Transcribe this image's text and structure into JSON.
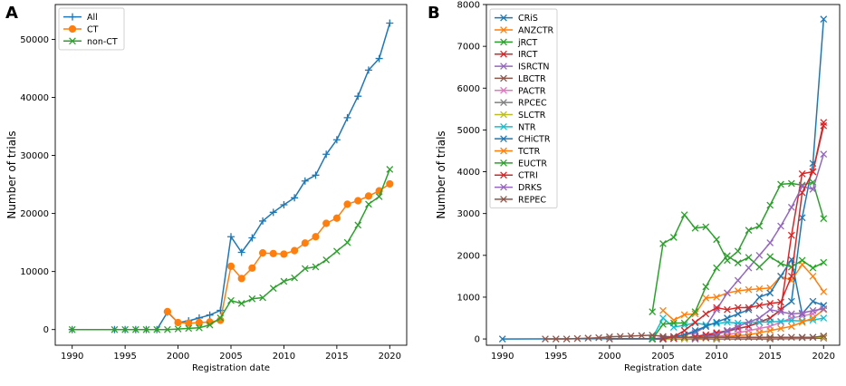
{
  "chart_data": [
    {
      "panel": "A",
      "type": "line",
      "xlabel": "Registration date",
      "ylabel": "Number of trials",
      "xlim": [
        1988.4,
        2021.6
      ],
      "ylim": [
        -2700,
        56000
      ],
      "xticks": [
        1990,
        1995,
        2000,
        2005,
        2010,
        2015,
        2020
      ],
      "yticks": [
        0,
        10000,
        20000,
        30000,
        40000,
        50000
      ],
      "legend_position": "top-left",
      "series": [
        {
          "name": "All",
          "color": "#1f77b4",
          "marker": "+",
          "x": [
            1990,
            1994,
            1995,
            1996,
            1997,
            1998,
            1999,
            2000,
            2001,
            2002,
            2003,
            2004,
            2005,
            2006,
            2007,
            2008,
            2009,
            2010,
            2011,
            2012,
            2013,
            2014,
            2015,
            2016,
            2017,
            2018,
            2019,
            2020
          ],
          "values": [
            0,
            0,
            0,
            0,
            0,
            0,
            3000,
            1200,
            1500,
            2000,
            2500,
            3300,
            16000,
            13300,
            15800,
            18700,
            20200,
            21500,
            22700,
            25600,
            26600,
            30200,
            32700,
            36500,
            40200,
            44700,
            46700,
            52800
          ]
        },
        {
          "name": "CT",
          "color": "#ff7f0e",
          "marker": "o",
          "x": [
            1999,
            2000,
            2001,
            2002,
            2003,
            2004,
            2005,
            2006,
            2007,
            2008,
            2009,
            2010,
            2011,
            2012,
            2013,
            2014,
            2015,
            2016,
            2017,
            2018,
            2019,
            2020
          ],
          "values": [
            3100,
            1200,
            1100,
            1200,
            1300,
            1600,
            10900,
            8800,
            10600,
            13200,
            13100,
            13000,
            13600,
            14900,
            16000,
            18300,
            19200,
            21600,
            22200,
            23000,
            23900,
            25100
          ]
        },
        {
          "name": "non-CT",
          "color": "#2ca02c",
          "marker": "x",
          "x": [
            1990,
            1994,
            1995,
            1996,
            1997,
            1998,
            1999,
            2000,
            2001,
            2002,
            2003,
            2004,
            2005,
            2006,
            2007,
            2008,
            2009,
            2010,
            2011,
            2012,
            2013,
            2014,
            2015,
            2016,
            2017,
            2018,
            2019,
            2020
          ],
          "values": [
            0,
            0,
            0,
            0,
            0,
            0,
            0,
            100,
            200,
            300,
            800,
            2000,
            5000,
            4500,
            5300,
            5500,
            7100,
            8300,
            8900,
            10500,
            10800,
            12000,
            13500,
            15000,
            18000,
            21600,
            22900,
            27600
          ]
        }
      ]
    },
    {
      "panel": "B",
      "type": "line",
      "xlabel": "Registration date",
      "ylabel": "Number of trials",
      "xlim": [
        1988.5,
        2021.5
      ],
      "ylim": [
        -150,
        8000
      ],
      "xticks": [
        1990,
        1995,
        2000,
        2005,
        2010,
        2015,
        2020
      ],
      "yticks": [
        0,
        1000,
        2000,
        3000,
        4000,
        5000,
        6000,
        7000,
        8000
      ],
      "legend_position": "top-left",
      "series": [
        {
          "name": "CRiS",
          "color": "#1f77b4",
          "marker": "x",
          "x": [
            2004,
            2005,
            2006,
            2007,
            2008,
            2009,
            2010,
            2011,
            2012,
            2013,
            2014,
            2015,
            2016,
            2017,
            2018,
            2019,
            2020
          ],
          "values": [
            0,
            0,
            10,
            20,
            40,
            70,
            120,
            180,
            250,
            300,
            400,
            500,
            700,
            900,
            2900,
            4200,
            7650
          ]
        },
        {
          "name": "ANZCTR",
          "color": "#ff7f0e",
          "marker": "x",
          "x": [
            2005,
            2006,
            2007,
            2008,
            2009,
            2010,
            2011,
            2012,
            2013,
            2014,
            2015,
            2016,
            2017,
            2018,
            2019,
            2020
          ],
          "values": [
            680,
            450,
            580,
            600,
            980,
            1000,
            1100,
            1150,
            1180,
            1200,
            1220,
            1500,
            1400,
            1780,
            1500,
            1130
          ]
        },
        {
          "name": "jRCT",
          "color": "#2ca02c",
          "marker": "x",
          "x": [
            2004,
            2005,
            2006,
            2007,
            2008,
            2009,
            2010,
            2011,
            2012,
            2013,
            2014,
            2015,
            2016,
            2017,
            2018,
            2019,
            2020
          ],
          "values": [
            650,
            2280,
            2430,
            2970,
            2650,
            2680,
            2380,
            1880,
            2100,
            2600,
            2700,
            3200,
            3700,
            3720,
            3680,
            3750,
            2880
          ]
        },
        {
          "name": "IRCT",
          "color": "#d62728",
          "marker": "x",
          "x": [
            2004,
            2005,
            2006,
            2007,
            2008,
            2009,
            2010,
            2011,
            2012,
            2013,
            2014,
            2015,
            2016,
            2017,
            2018,
            2019,
            2020
          ],
          "values": [
            0,
            0,
            10,
            30,
            60,
            100,
            150,
            200,
            250,
            300,
            400,
            500,
            700,
            2480,
            3950,
            4000,
            5180
          ]
        },
        {
          "name": "ISRCTN",
          "color": "#9467bd",
          "marker": "x",
          "x": [
            2004,
            2005,
            2006,
            2007,
            2008,
            2009,
            2010,
            2011,
            2012,
            2013,
            2014,
            2015,
            2016,
            2017,
            2018,
            2019,
            2020
          ],
          "values": [
            0,
            30,
            60,
            100,
            150,
            300,
            700,
            1100,
            1400,
            1700,
            2000,
            2300,
            2700,
            3150,
            3650,
            3580,
            4420
          ]
        },
        {
          "name": "LBCTR",
          "color": "#8c564b",
          "marker": "x",
          "x": [
            2000,
            2005,
            2010,
            2015,
            2020
          ],
          "values": [
            0,
            0,
            0,
            0,
            20
          ]
        },
        {
          "name": "PACTR",
          "color": "#e377c2",
          "marker": "x",
          "x": [
            2007,
            2008,
            2009,
            2010,
            2011,
            2012,
            2013,
            2014,
            2015,
            2016,
            2017,
            2018,
            2019,
            2020
          ],
          "values": [
            0,
            20,
            40,
            60,
            100,
            150,
            200,
            250,
            300,
            400,
            500,
            550,
            600,
            800
          ]
        },
        {
          "name": "RPCEC",
          "color": "#7f7f7f",
          "marker": "x",
          "x": [
            2005,
            2010,
            2015,
            2018,
            2019,
            2020
          ],
          "values": [
            0,
            10,
            20,
            30,
            40,
            60
          ]
        },
        {
          "name": "SLCTR",
          "color": "#bcbd22",
          "marker": "x",
          "x": [
            2005,
            2007,
            2010,
            2015,
            2020
          ],
          "values": [
            0,
            10,
            20,
            30,
            40
          ]
        },
        {
          "name": "NTR",
          "color": "#17becf",
          "marker": "x",
          "x": [
            2004,
            2005,
            2006,
            2007,
            2008,
            2009,
            2010,
            2011,
            2012,
            2013,
            2014,
            2015,
            2016,
            2017,
            2018,
            2019,
            2020
          ],
          "values": [
            20,
            500,
            280,
            330,
            380,
            340,
            370,
            400,
            380,
            400,
            400,
            410,
            420,
            440,
            430,
            450,
            500
          ]
        },
        {
          "name": "CHiCTR",
          "color": "#1f77b4",
          "marker": "x",
          "x": [
            1990,
            2005,
            2006,
            2007,
            2008,
            2009,
            2010,
            2011,
            2012,
            2013,
            2014,
            2015,
            2016,
            2017,
            2018,
            2019,
            2020
          ],
          "values": [
            0,
            10,
            50,
            100,
            200,
            300,
            400,
            500,
            600,
            700,
            1000,
            1100,
            1500,
            1900,
            600,
            900,
            800
          ]
        },
        {
          "name": "TCTR",
          "color": "#ff7f0e",
          "marker": "x",
          "x": [
            2008,
            2009,
            2010,
            2011,
            2012,
            2013,
            2014,
            2015,
            2016,
            2017,
            2018,
            2019,
            2020
          ],
          "values": [
            0,
            20,
            40,
            60,
            80,
            100,
            150,
            200,
            250,
            300,
            400,
            500,
            700
          ]
        },
        {
          "name": "EUCTR",
          "color": "#2ca02c",
          "marker": "x",
          "x": [
            2004,
            2005,
            2006,
            2007,
            2008,
            2009,
            2010,
            2011,
            2012,
            2013,
            2014,
            2015,
            2016,
            2017,
            2018,
            2019,
            2020
          ],
          "values": [
            0,
            350,
            380,
            380,
            650,
            1250,
            1700,
            1990,
            1820,
            1950,
            1720,
            1970,
            1800,
            1720,
            1880,
            1700,
            1830
          ]
        },
        {
          "name": "CTRI",
          "color": "#d62728",
          "marker": "x",
          "x": [
            2005,
            2006,
            2007,
            2008,
            2009,
            2010,
            2011,
            2012,
            2013,
            2014,
            2015,
            2016,
            2017,
            2018,
            2019,
            2020
          ],
          "values": [
            0,
            50,
            200,
            400,
            600,
            750,
            700,
            750,
            750,
            800,
            850,
            880,
            1500,
            3500,
            4000,
            5100
          ]
        },
        {
          "name": "DRKS",
          "color": "#9467bd",
          "marker": "x",
          "x": [
            2008,
            2009,
            2010,
            2011,
            2012,
            2013,
            2014,
            2015,
            2016,
            2017,
            2018,
            2019,
            2020
          ],
          "values": [
            0,
            50,
            100,
            200,
            300,
            400,
            500,
            700,
            650,
            600,
            620,
            680,
            720
          ]
        },
        {
          "name": "REPEC",
          "color": "#8c564b",
          "marker": "x",
          "x": [
            1994,
            1995,
            1996,
            1997,
            1998,
            1999,
            2000,
            2001,
            2002,
            2003,
            2004,
            2005,
            2006,
            2007,
            2008,
            2009,
            2010,
            2011,
            2012,
            2013,
            2014,
            2015,
            2016,
            2017,
            2018,
            2019,
            2020
          ],
          "values": [
            0,
            0,
            0,
            10,
            20,
            30,
            50,
            60,
            70,
            80,
            90,
            60,
            50,
            40,
            30,
            30,
            40,
            40,
            40,
            40,
            40,
            40,
            40,
            40,
            40,
            40,
            70
          ]
        }
      ]
    }
  ]
}
